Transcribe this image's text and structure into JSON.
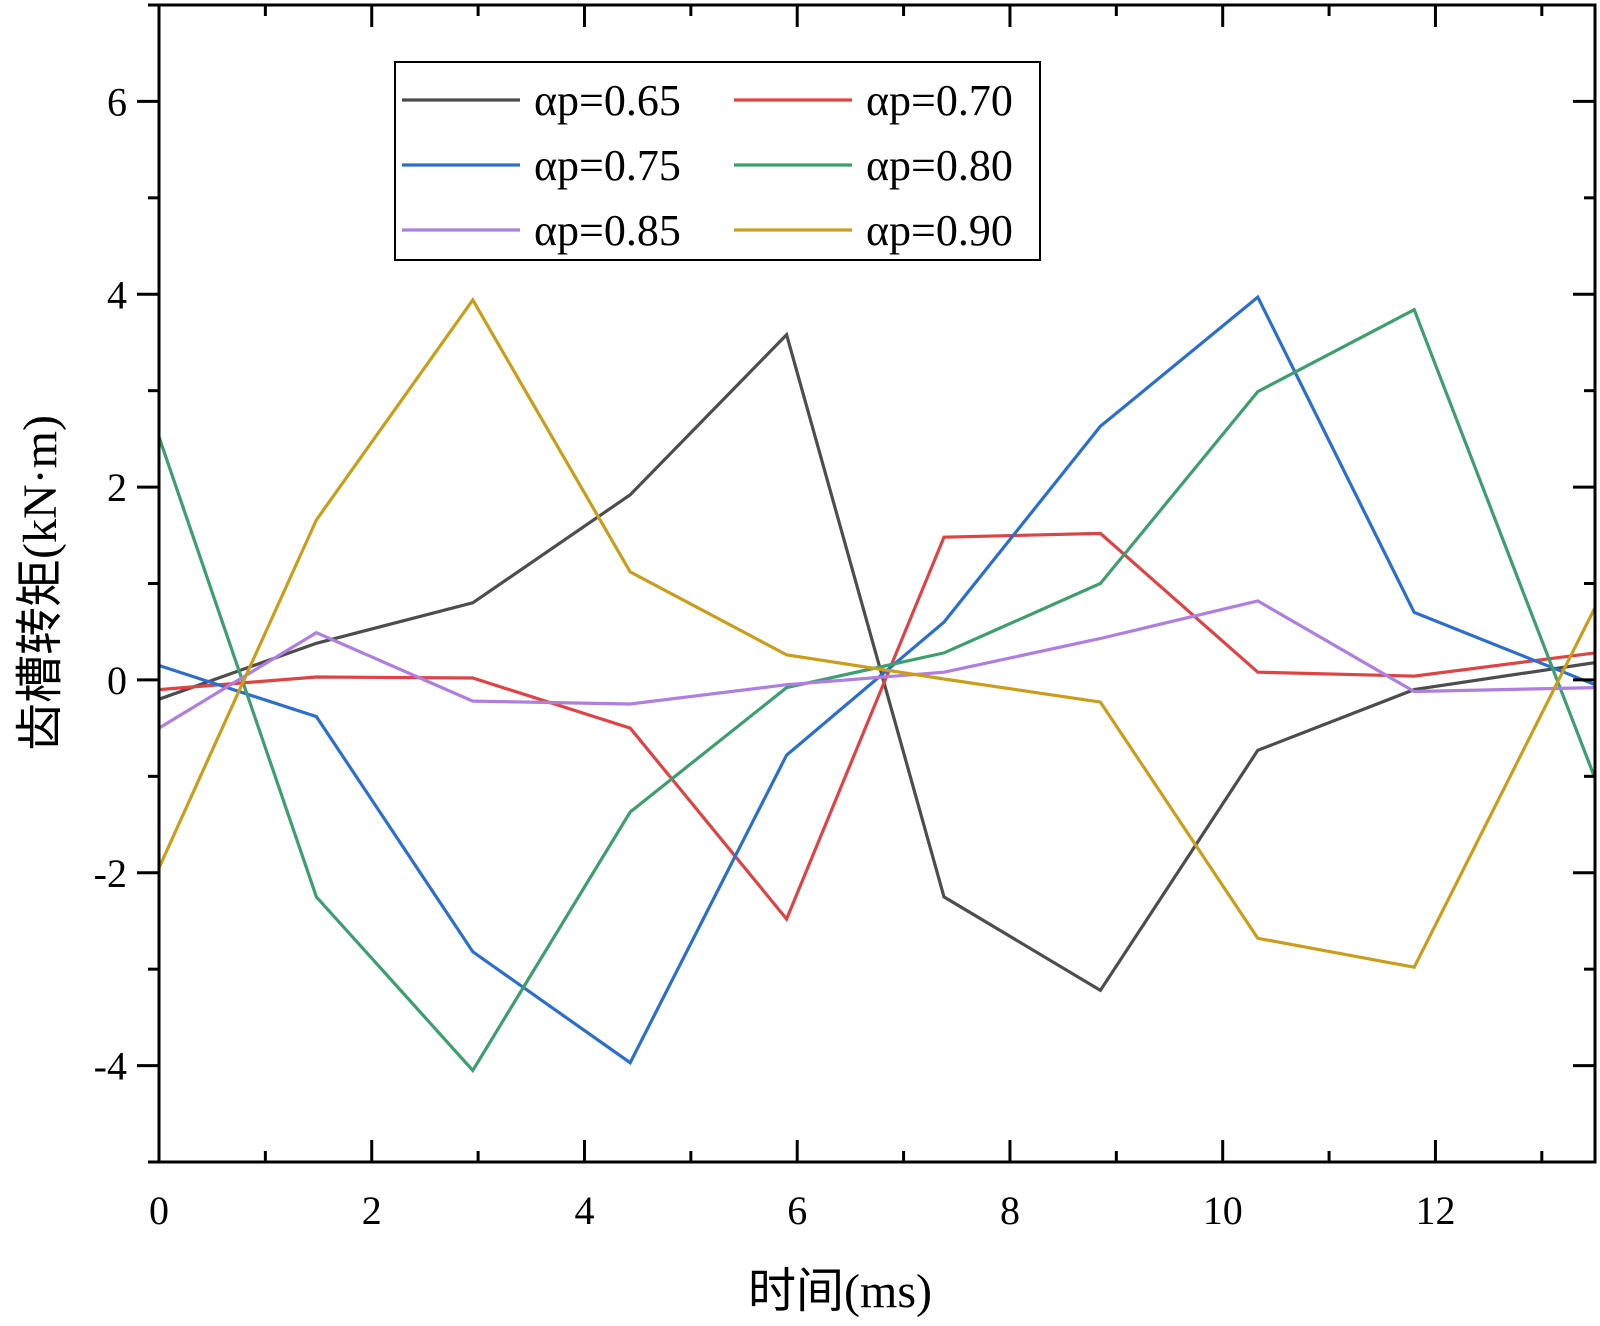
{
  "chart_data": {
    "type": "line",
    "title": "",
    "xlabel": "时间(ms)",
    "ylabel": "齿槽转矩(kN·m)",
    "xlim": [
      0,
      13.5
    ],
    "ylim": [
      -5,
      7
    ],
    "xticks": [
      0,
      2,
      4,
      6,
      8,
      10,
      12
    ],
    "yticks": [
      -4,
      -2,
      0,
      2,
      4,
      6
    ],
    "xtick_labels": [
      "0",
      "2",
      "4",
      "6",
      "8",
      "10",
      "12"
    ],
    "ytick_labels": [
      "-4",
      "-2",
      "0",
      "2",
      "4",
      "6"
    ],
    "legend_position": "top-left",
    "legend_columns": 2,
    "grid": false,
    "x": [
      0,
      1.48,
      2.95,
      4.43,
      5.9,
      7.38,
      8.85,
      10.33,
      11.8,
      13.5
    ],
    "series": [
      {
        "name": "αp=0.65",
        "color": "#4d4d4d",
        "values": [
          -0.2,
          0.38,
          0.8,
          1.92,
          3.58,
          -2.25,
          -3.22,
          -0.73,
          -0.1,
          0.18
        ]
      },
      {
        "name": "αp=0.70",
        "color": "#e04343",
        "values": [
          -0.1,
          0.03,
          0.02,
          -0.5,
          -2.48,
          1.48,
          1.52,
          0.08,
          0.04,
          0.28
        ]
      },
      {
        "name": "αp=0.75",
        "color": "#2b6fcc",
        "values": [
          0.15,
          -0.38,
          -2.82,
          -3.97,
          -0.78,
          0.6,
          2.63,
          3.97,
          0.7,
          -0.05
        ]
      },
      {
        "name": "αp=0.80",
        "color": "#3d9e6e",
        "values": [
          2.52,
          -2.25,
          -4.05,
          -1.37,
          -0.08,
          0.28,
          1.0,
          2.99,
          3.84,
          -1.02
        ]
      },
      {
        "name": "αp=0.85",
        "color": "#b07ee0",
        "values": [
          -0.5,
          0.49,
          -0.22,
          -0.25,
          -0.05,
          0.08,
          0.43,
          0.82,
          -0.12,
          -0.08
        ]
      },
      {
        "name": "αp=0.90",
        "color": "#cc9d1a",
        "values": [
          -1.95,
          1.66,
          3.94,
          1.12,
          0.26,
          0.01,
          -0.23,
          -2.68,
          -2.98,
          0.75
        ]
      }
    ]
  }
}
